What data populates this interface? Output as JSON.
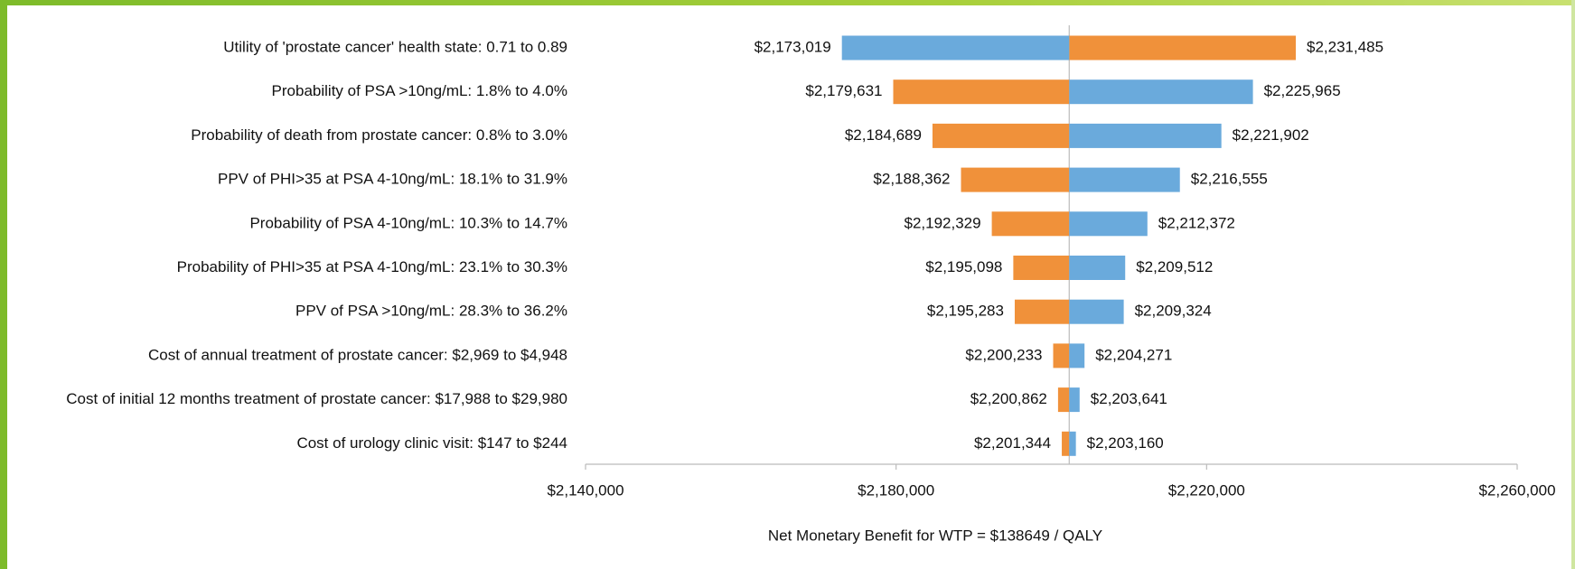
{
  "chart_data": {
    "type": "tornado",
    "categories": [
      "Utility of 'prostate cancer' health state: 0.71 to 0.89",
      "Probability of PSA >10ng/mL: 1.8% to 4.0%",
      "Probability of death from prostate cancer: 0.8% to 3.0%",
      "PPV of PHI>35 at PSA 4-10ng/mL: 18.1% to 31.9%",
      "Probability of PSA 4-10ng/mL: 10.3% to 14.7%",
      "Probability of PHI>35 at PSA 4-10ng/mL: 23.1% to 30.3%",
      "PPV of PSA >10ng/mL: 28.3% to 36.2%",
      "Cost of annual treatment of prostate cancer: $2,969 to $4,948",
      "Cost of initial 12 months treatment of prostate cancer: $17,988 to $29,980",
      "Cost of urology clinic visit: $147 to $244"
    ],
    "base": 2202300,
    "series": [
      {
        "color": "#f0913a",
        "values": [
          2231485,
          2179631,
          2184689,
          2188362,
          2192329,
          2195098,
          2195283,
          2200233,
          2200862,
          2201344
        ],
        "value_labels": [
          "$2,231,485",
          "$2,179,631",
          "$2,184,689",
          "$2,188,362",
          "$2,192,329",
          "$2,195,098",
          "$2,195,283",
          "$2,200,233",
          "$2,200,862",
          "$2,201,344"
        ]
      },
      {
        "color": "#6aaadc",
        "values": [
          2173019,
          2225965,
          2221902,
          2216555,
          2212372,
          2209512,
          2209324,
          2204271,
          2203641,
          2203160
        ],
        "value_labels": [
          "$2,173,019",
          "$2,225,965",
          "$2,221,902",
          "$2,216,555",
          "$2,212,372",
          "$2,209,512",
          "$2,209,324",
          "$2,204,271",
          "$2,203,641",
          "$2,203,160"
        ]
      }
    ],
    "xlim": [
      2140000,
      2260000
    ],
    "xticks": [
      {
        "value": 2140000,
        "label": "$2,140,000"
      },
      {
        "value": 2180000,
        "label": "$2,180,000"
      },
      {
        "value": 2220000,
        "label": "$2,220,000"
      },
      {
        "value": 2260000,
        "label": "$2,260,000"
      }
    ],
    "xlabel": "Net Monetary Benefit for WTP = $138649 / QALY"
  }
}
